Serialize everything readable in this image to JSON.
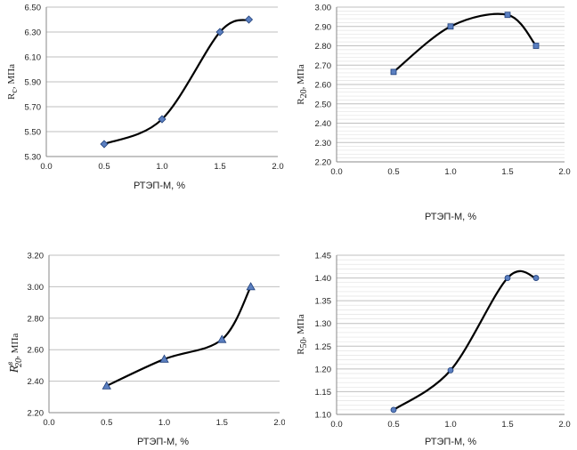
{
  "chart_data": [
    {
      "type": "line",
      "title": "",
      "xlabel": "РТЭП-М, %",
      "ylabel": {
        "main": "R",
        "sub": "c",
        "sup": "",
        "suffix": ", МПа"
      },
      "xlim": [
        0.0,
        2.0
      ],
      "ylim": [
        5.3,
        6.5
      ],
      "xticks": [
        "0.0",
        "0.5",
        "1.0",
        "1.5",
        "2.0"
      ],
      "yticks": [
        "5.30",
        "5.50",
        "5.70",
        "5.90",
        "6.10",
        "6.30",
        "6.50"
      ],
      "minor_grid": false,
      "marker": "diamond",
      "series": [
        {
          "x": [
            0.5,
            1.0,
            1.5,
            1.75
          ],
          "y": [
            5.4,
            5.6,
            6.3,
            6.4
          ]
        }
      ]
    },
    {
      "type": "line",
      "title": "",
      "xlabel": "РТЭП-М, %",
      "ylabel": {
        "main": "R",
        "sub": "20",
        "sup": "",
        "suffix": ", МПа"
      },
      "xlim": [
        0.0,
        2.0
      ],
      "ylim": [
        2.2,
        3.0
      ],
      "xticks": [
        "0.0",
        "0.5",
        "1.0",
        "1.5",
        "2.0"
      ],
      "yticks": [
        "2.20",
        "2.30",
        "2.40",
        "2.50",
        "2.60",
        "2.70",
        "2.80",
        "2.90",
        "3.00"
      ],
      "minor_grid": true,
      "marker": "square",
      "series": [
        {
          "x": [
            0.5,
            1.0,
            1.5,
            1.75
          ],
          "y": [
            2.665,
            2.9,
            2.96,
            2.8
          ]
        }
      ]
    },
    {
      "type": "line",
      "title": "",
      "xlabel": "РТЭП-М, %",
      "ylabel": {
        "main": "R",
        "sub": "20",
        "sup": "в",
        "suffix": ", МПа"
      },
      "xlim": [
        0.0,
        2.0
      ],
      "ylim": [
        2.2,
        3.2
      ],
      "xticks": [
        "0.0",
        "0.5",
        "1.0",
        "1.5",
        "2.0"
      ],
      "yticks": [
        "2.20",
        "2.40",
        "2.60",
        "2.80",
        "3.00",
        "3.20"
      ],
      "minor_grid": false,
      "marker": "triangle",
      "series": [
        {
          "x": [
            0.5,
            1.0,
            1.5,
            1.75
          ],
          "y": [
            2.37,
            2.54,
            2.665,
            3.0
          ]
        }
      ]
    },
    {
      "type": "line",
      "title": "",
      "xlabel": "РТЭП-М, %",
      "ylabel": {
        "main": "R",
        "sub": "50",
        "sup": "",
        "suffix": ", МПа"
      },
      "xlim": [
        0.0,
        2.0
      ],
      "ylim": [
        1.1,
        1.45
      ],
      "xticks": [
        "0.0",
        "0.5",
        "1.0",
        "1.5",
        "2.0"
      ],
      "yticks": [
        "1.10",
        "1.15",
        "1.20",
        "1.25",
        "1.30",
        "1.35",
        "1.40",
        "1.45"
      ],
      "minor_grid": true,
      "marker": "circle",
      "series": [
        {
          "x": [
            0.5,
            1.0,
            1.5,
            1.75
          ],
          "y": [
            1.11,
            1.197,
            1.4,
            1.4
          ]
        }
      ]
    }
  ],
  "style": {
    "marker_fill": "#5b7fc0",
    "marker_stroke": "#1f3f7a",
    "line_color": "#000000",
    "grid_color": "#bfbfbf",
    "minor_grid_color": "#e3e3e3"
  }
}
